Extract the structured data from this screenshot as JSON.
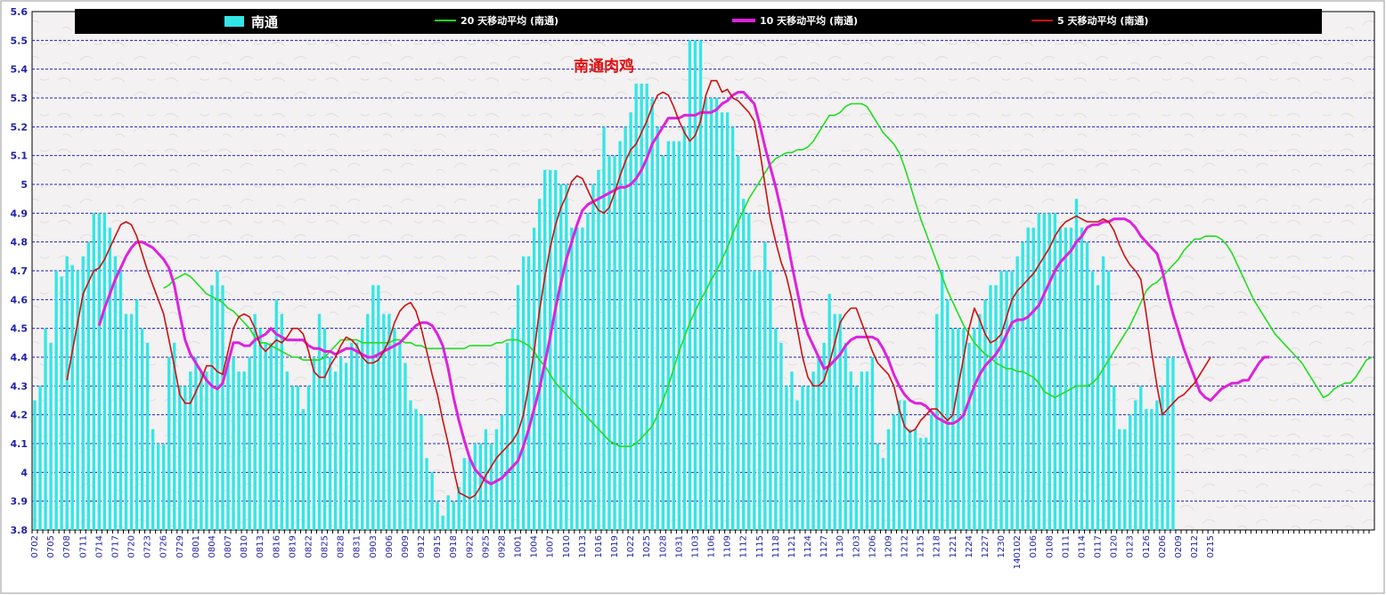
{
  "chart_data": {
    "type": "bar",
    "title": "南通肉鸡",
    "ylim": [
      3.8,
      5.6
    ],
    "y_ticks": [
      "3.8",
      "3.9",
      "4",
      "4.1",
      "4.2",
      "4.3",
      "4.4",
      "4.5",
      "4.6",
      "4.7",
      "4.8",
      "4.9",
      "5",
      "5.1",
      "5.2",
      "5.3",
      "5.4",
      "5.5",
      "5.6"
    ],
    "x_tick_labels": [
      "0702",
      "0705",
      "0708",
      "0711",
      "0714",
      "0717",
      "0720",
      "0723",
      "0726",
      "0729",
      "0801",
      "0804",
      "0807",
      "0810",
      "0813",
      "0816",
      "0819",
      "0822",
      "0825",
      "0828",
      "0831",
      "0903",
      "0906",
      "0909",
      "0912",
      "0915",
      "0918",
      "0922",
      "0925",
      "0928",
      "1001",
      "1004",
      "1007",
      "1010",
      "1013",
      "1016",
      "1019",
      "1022",
      "1025",
      "1028",
      "1031",
      "1103",
      "1106",
      "1109",
      "1112",
      "1115",
      "1118",
      "1121",
      "1124",
      "1127",
      "1130",
      "1203",
      "1206",
      "1209",
      "1212",
      "1215",
      "1218",
      "1221",
      "1224",
      "1227",
      "1230",
      "140102",
      "0106",
      "0108",
      "0111",
      "0114",
      "0117",
      "0120",
      "0123",
      "0126",
      "0206",
      "0209",
      "0212",
      "0215"
    ],
    "grid": "horizontal-dashed",
    "legend_position": "top",
    "legend": {
      "bar": "南通",
      "ma20": "20 天移动平均 (南通)",
      "ma10": "10 天移动平均 (南通)",
      "ma5": "5 天移动平均 (南通)"
    },
    "colors": {
      "bar": "#33e6e6",
      "ma20": "#22dd22",
      "ma10": "#dd22dd",
      "ma5": "#cc1111",
      "grid": "#2222bb",
      "title": "#dd1111",
      "legend_bg": "#000000",
      "legend_text": "#ffffff",
      "axis_text": "#2222aa"
    },
    "series": [
      {
        "name": "南通",
        "kind": "bar",
        "values": [
          4.25,
          4.3,
          4.5,
          4.45,
          4.7,
          4.68,
          4.75,
          4.72,
          4.7,
          4.75,
          4.8,
          4.9,
          4.9,
          4.9,
          4.85,
          4.75,
          4.7,
          4.55,
          4.55,
          4.6,
          4.5,
          4.45,
          4.15,
          4.1,
          4.1,
          4.4,
          4.45,
          4.3,
          4.3,
          4.35,
          4.4,
          4.35,
          4.35,
          4.65,
          4.7,
          4.65,
          4.4,
          4.4,
          4.35,
          4.35,
          4.4,
          4.55,
          4.5,
          4.45,
          4.45,
          4.6,
          4.55,
          4.35,
          4.3,
          4.3,
          4.22,
          4.3,
          4.4,
          4.55,
          4.5,
          4.4,
          4.35,
          4.4,
          4.38,
          4.45,
          4.45,
          4.5,
          4.55,
          4.65,
          4.65,
          4.55,
          4.55,
          4.5,
          4.45,
          4.38,
          4.25,
          4.22,
          4.2,
          4.05,
          4.0,
          3.9,
          3.85,
          3.92,
          3.9,
          3.95,
          4.05,
          4.05,
          4.1,
          4.1,
          4.15,
          4.1,
          4.15,
          4.2,
          4.45,
          4.5,
          4.65,
          4.75,
          4.75,
          4.85,
          4.95,
          5.05,
          5.05,
          5.05,
          5.0,
          5.0,
          4.85,
          4.85,
          4.85,
          4.9,
          5.0,
          5.05,
          5.2,
          5.1,
          5.1,
          5.15,
          5.2,
          5.25,
          5.35,
          5.35,
          5.35,
          5.3,
          5.2,
          5.1,
          5.15,
          5.15,
          5.15,
          5.2,
          5.5,
          5.5,
          5.5,
          5.3,
          5.3,
          5.3,
          5.25,
          5.25,
          5.2,
          5.1,
          4.95,
          4.9,
          4.7,
          4.7,
          4.8,
          4.7,
          4.5,
          4.45,
          4.3,
          4.35,
          4.25,
          4.3,
          4.3,
          4.35,
          4.4,
          4.45,
          4.62,
          4.55,
          4.55,
          4.45,
          4.35,
          4.3,
          4.35,
          4.35,
          4.4,
          4.1,
          4.05,
          4.15,
          4.2,
          4.25,
          4.25,
          4.15,
          4.15,
          4.12,
          4.12,
          4.2,
          4.55,
          4.7,
          4.6,
          4.5,
          4.5,
          4.5,
          4.45,
          4.5,
          4.55,
          4.6,
          4.65,
          4.65,
          4.7,
          4.7,
          4.7,
          4.75,
          4.8,
          4.85,
          4.85,
          4.9,
          4.9,
          4.9,
          4.9,
          4.85,
          4.85,
          4.85,
          4.95,
          4.85,
          4.8,
          4.7,
          4.65,
          4.75,
          4.7,
          4.3,
          4.15,
          4.15,
          4.2,
          4.25,
          4.3,
          4.22,
          4.22,
          4.25,
          4.3,
          4.4,
          4.4
        ]
      },
      {
        "name": "5 天移动平均 (南通)",
        "kind": "line",
        "values": [
          4.32,
          4.42,
          4.52,
          4.62,
          4.66,
          4.7,
          4.71,
          4.74,
          4.78,
          4.82,
          4.86,
          4.87,
          4.86,
          4.82,
          4.76,
          4.7,
          4.65,
          4.6,
          4.55,
          4.46,
          4.37,
          4.27,
          4.24,
          4.24,
          4.28,
          4.32,
          4.37,
          4.37,
          4.35,
          4.34,
          4.42,
          4.5,
          4.54,
          4.55,
          4.54,
          4.5,
          4.44,
          4.42,
          4.44,
          4.46,
          4.45,
          4.47,
          4.5,
          4.5,
          4.48,
          4.42,
          4.35,
          4.33,
          4.33,
          4.37,
          4.4,
          4.44,
          4.47,
          4.46,
          4.44,
          4.4,
          4.38,
          4.38,
          4.39,
          4.42,
          4.46,
          4.52,
          4.56,
          4.58,
          4.59,
          4.56,
          4.5,
          4.42,
          4.34,
          4.27,
          4.18,
          4.1,
          4.01,
          3.93,
          3.92,
          3.91,
          3.92,
          3.95,
          3.99,
          4.02,
          4.05,
          4.07,
          4.09,
          4.11,
          4.14,
          4.2,
          4.3,
          4.42,
          4.56,
          4.68,
          4.78,
          4.86,
          4.92,
          4.96,
          5.01,
          5.03,
          5.02,
          4.98,
          4.94,
          4.91,
          4.9,
          4.92,
          4.97,
          5.03,
          5.08,
          5.12,
          5.14,
          5.18,
          5.22,
          5.27,
          5.31,
          5.32,
          5.31,
          5.27,
          5.22,
          5.18,
          5.15,
          5.17,
          5.22,
          5.31,
          5.36,
          5.36,
          5.32,
          5.33,
          5.3,
          5.29,
          5.27,
          5.25,
          5.22,
          5.12,
          5.0,
          4.88,
          4.8,
          4.73,
          4.68,
          4.6,
          4.5,
          4.4,
          4.33,
          4.3,
          4.3,
          4.32,
          4.38,
          4.45,
          4.52,
          4.55,
          4.57,
          4.57,
          4.52,
          4.47,
          4.42,
          4.38,
          4.36,
          4.34,
          4.3,
          4.22,
          4.16,
          4.14,
          4.15,
          4.18,
          4.2,
          4.22,
          4.22,
          4.2,
          4.18,
          4.2,
          4.3,
          4.4,
          4.5,
          4.57,
          4.53,
          4.48,
          4.45,
          4.46,
          4.48,
          4.54,
          4.6,
          4.63,
          4.65,
          4.67,
          4.69,
          4.72,
          4.75,
          4.78,
          4.82,
          4.85,
          4.87,
          4.88,
          4.89,
          4.88,
          4.87,
          4.87,
          4.87,
          4.88,
          4.87,
          4.84,
          4.79,
          4.75,
          4.72,
          4.7,
          4.67,
          4.55,
          4.42,
          4.3,
          4.2,
          4.22,
          4.24,
          4.26,
          4.27,
          4.29,
          4.31,
          4.34,
          4.37,
          4.4
        ]
      },
      {
        "name": "10 天移动平均 (南通)",
        "kind": "line",
        "values": [
          4.51,
          4.57,
          4.62,
          4.67,
          4.71,
          4.75,
          4.78,
          4.8,
          4.8,
          4.79,
          4.78,
          4.76,
          4.74,
          4.71,
          4.65,
          4.55,
          4.46,
          4.41,
          4.38,
          4.35,
          4.32,
          4.3,
          4.29,
          4.31,
          4.38,
          4.45,
          4.45,
          4.44,
          4.44,
          4.46,
          4.47,
          4.48,
          4.5,
          4.48,
          4.47,
          4.46,
          4.46,
          4.46,
          4.46,
          4.44,
          4.43,
          4.43,
          4.42,
          4.42,
          4.41,
          4.42,
          4.43,
          4.43,
          4.42,
          4.41,
          4.4,
          4.4,
          4.41,
          4.42,
          4.43,
          4.44,
          4.45,
          4.47,
          4.49,
          4.51,
          4.52,
          4.52,
          4.51,
          4.48,
          4.44,
          4.36,
          4.26,
          4.18,
          4.11,
          4.05,
          4.01,
          3.99,
          3.97,
          3.96,
          3.97,
          3.98,
          4.0,
          4.02,
          4.04,
          4.09,
          4.15,
          4.22,
          4.29,
          4.38,
          4.47,
          4.57,
          4.66,
          4.74,
          4.8,
          4.86,
          4.91,
          4.93,
          4.94,
          4.95,
          4.96,
          4.97,
          4.98,
          4.99,
          4.99,
          5.0,
          5.02,
          5.05,
          5.09,
          5.14,
          5.17,
          5.2,
          5.23,
          5.23,
          5.23,
          5.24,
          5.24,
          5.24,
          5.25,
          5.25,
          5.25,
          5.26,
          5.28,
          5.29,
          5.31,
          5.32,
          5.32,
          5.3,
          5.28,
          5.21,
          5.13,
          5.06,
          4.99,
          4.91,
          4.82,
          4.72,
          4.63,
          4.54,
          4.48,
          4.44,
          4.4,
          4.36,
          4.37,
          4.39,
          4.41,
          4.44,
          4.46,
          4.47,
          4.47,
          4.47,
          4.47,
          4.46,
          4.43,
          4.39,
          4.34,
          4.3,
          4.27,
          4.25,
          4.24,
          4.24,
          4.23,
          4.21,
          4.19,
          4.18,
          4.17,
          4.17,
          4.18,
          4.2,
          4.25,
          4.3,
          4.34,
          4.37,
          4.39,
          4.41,
          4.44,
          4.48,
          4.52,
          4.53,
          4.53,
          4.54,
          4.56,
          4.58,
          4.62,
          4.66,
          4.7,
          4.73,
          4.75,
          4.77,
          4.8,
          4.82,
          4.85,
          4.86,
          4.86,
          4.87,
          4.87,
          4.88,
          4.88,
          4.88,
          4.87,
          4.85,
          4.82,
          4.8,
          4.78,
          4.76,
          4.7,
          4.62,
          4.55,
          4.49,
          4.43,
          4.38,
          4.33,
          4.28,
          4.26,
          4.25,
          4.27,
          4.29,
          4.3,
          4.31,
          4.31,
          4.32,
          4.32,
          4.35,
          4.38,
          4.4,
          4.4
        ]
      },
      {
        "name": "20 天移动平均 (南通)",
        "kind": "line",
        "values": [
          4.64,
          4.65,
          4.67,
          4.68,
          4.69,
          4.68,
          4.66,
          4.64,
          4.62,
          4.61,
          4.6,
          4.59,
          4.57,
          4.56,
          4.54,
          4.52,
          4.5,
          4.47,
          4.45,
          4.45,
          4.44,
          4.43,
          4.42,
          4.41,
          4.4,
          4.4,
          4.39,
          4.39,
          4.39,
          4.39,
          4.4,
          4.42,
          4.44,
          4.46,
          4.46,
          4.46,
          4.46,
          4.45,
          4.45,
          4.45,
          4.45,
          4.45,
          4.45,
          4.46,
          4.46,
          4.45,
          4.45,
          4.44,
          4.44,
          4.43,
          4.43,
          4.43,
          4.43,
          4.43,
          4.43,
          4.43,
          4.43,
          4.44,
          4.44,
          4.44,
          4.44,
          4.44,
          4.45,
          4.45,
          4.46,
          4.46,
          4.46,
          4.45,
          4.44,
          4.42,
          4.39,
          4.37,
          4.34,
          4.31,
          4.29,
          4.27,
          4.25,
          4.23,
          4.21,
          4.19,
          4.17,
          4.15,
          4.13,
          4.11,
          4.1,
          4.09,
          4.09,
          4.09,
          4.1,
          4.12,
          4.14,
          4.16,
          4.2,
          4.25,
          4.3,
          4.36,
          4.42,
          4.47,
          4.52,
          4.56,
          4.6,
          4.63,
          4.67,
          4.7,
          4.74,
          4.78,
          4.83,
          4.87,
          4.91,
          4.95,
          4.98,
          5.01,
          5.04,
          5.07,
          5.09,
          5.1,
          5.11,
          5.11,
          5.12,
          5.12,
          5.13,
          5.15,
          5.18,
          5.21,
          5.24,
          5.24,
          5.25,
          5.27,
          5.28,
          5.28,
          5.28,
          5.27,
          5.24,
          5.21,
          5.18,
          5.16,
          5.14,
          5.11,
          5.06,
          5.0,
          4.94,
          4.88,
          4.83,
          4.78,
          4.73,
          4.68,
          4.63,
          4.59,
          4.55,
          4.51,
          4.48,
          4.45,
          4.43,
          4.41,
          4.4,
          4.38,
          4.37,
          4.36,
          4.36,
          4.35,
          4.35,
          4.34,
          4.33,
          4.31,
          4.28,
          4.27,
          4.26,
          4.27,
          4.28,
          4.29,
          4.3,
          4.3,
          4.3,
          4.31,
          4.33,
          4.36,
          4.39,
          4.42,
          4.45,
          4.48,
          4.51,
          4.55,
          4.59,
          4.63,
          4.65,
          4.66,
          4.68,
          4.7,
          4.72,
          4.74,
          4.77,
          4.79,
          4.81,
          4.81,
          4.82,
          4.82,
          4.82,
          4.81,
          4.79,
          4.76,
          4.72,
          4.68,
          4.64,
          4.6,
          4.57,
          4.54,
          4.51,
          4.48,
          4.46,
          4.44,
          4.42,
          4.4,
          4.38,
          4.35,
          4.32,
          4.29,
          4.26,
          4.27,
          4.29,
          4.3,
          4.31,
          4.31,
          4.33,
          4.36,
          4.39,
          4.4,
          4.4
        ]
      }
    ]
  }
}
